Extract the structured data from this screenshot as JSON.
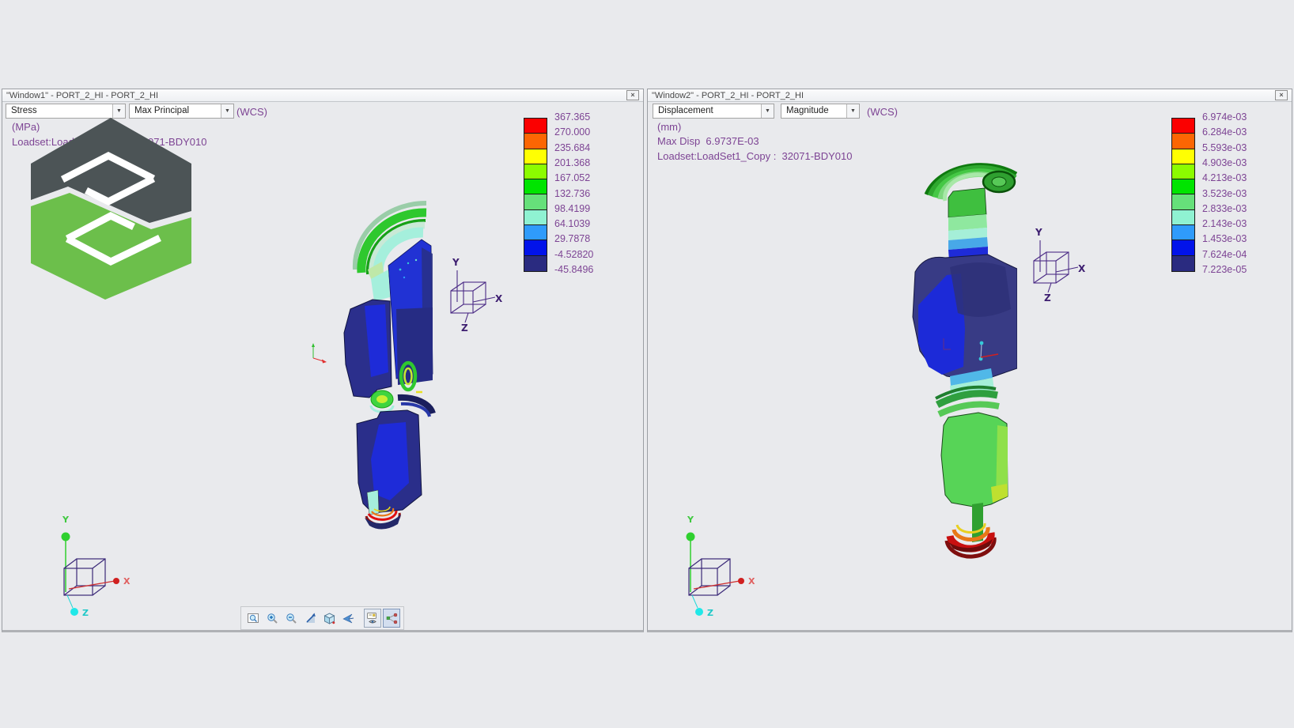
{
  "page": {
    "background": "#E9EAED"
  },
  "icons": {
    "dropdown_arrow": "▼",
    "close": "×"
  },
  "legend_colors": [
    "#FB0000",
    "#FC6603",
    "#FFFF02",
    "#8CFC00",
    "#00E400",
    "#66E07A",
    "#8FF2D2",
    "#2F9BFB",
    "#0213EA",
    "#2A2B80"
  ],
  "triad_labels": {
    "x": "X",
    "y": "Y",
    "z": "Z"
  },
  "logo": {
    "top_color": "#4C5456",
    "bottom_color": "#6CBF4B"
  },
  "window1": {
    "title": "\"Window1\" - PORT_2_HI - PORT_2_HI",
    "result_type": "Stress",
    "component": "Max Principal",
    "csys": "(WCS)",
    "unit": "(MPa)",
    "loadset": "Loadset:LoadSet1_Copy :  32071-BDY010",
    "legend": [
      "367.365",
      "270.000",
      "235.684",
      "201.368",
      "167.052",
      "132.736",
      "98.4199",
      "64.1039",
      "29.7878",
      "-4.52820",
      "-45.8496"
    ],
    "toolbar_icons": [
      "box-zoom",
      "zoom-in",
      "zoom-out",
      "refit",
      "named-view-cube",
      "fly-through",
      "display-filters",
      "cutting-surfaces"
    ]
  },
  "window2": {
    "title": "\"Window2\" - PORT_2_HI - PORT_2_HI",
    "result_type": "Displacement",
    "component": "Magnitude",
    "csys": "(WCS)",
    "unit": "(mm)",
    "max_disp": "Max Disp  6.9737E-03",
    "loadset": "Loadset:LoadSet1_Copy :  32071-BDY010",
    "legend": [
      "6.974e-03",
      "6.284e-03",
      "5.593e-03",
      "4.903e-03",
      "4.213e-03",
      "3.523e-03",
      "2.833e-03",
      "2.143e-03",
      "1.453e-03",
      "7.624e-04",
      "7.223e-05"
    ]
  }
}
